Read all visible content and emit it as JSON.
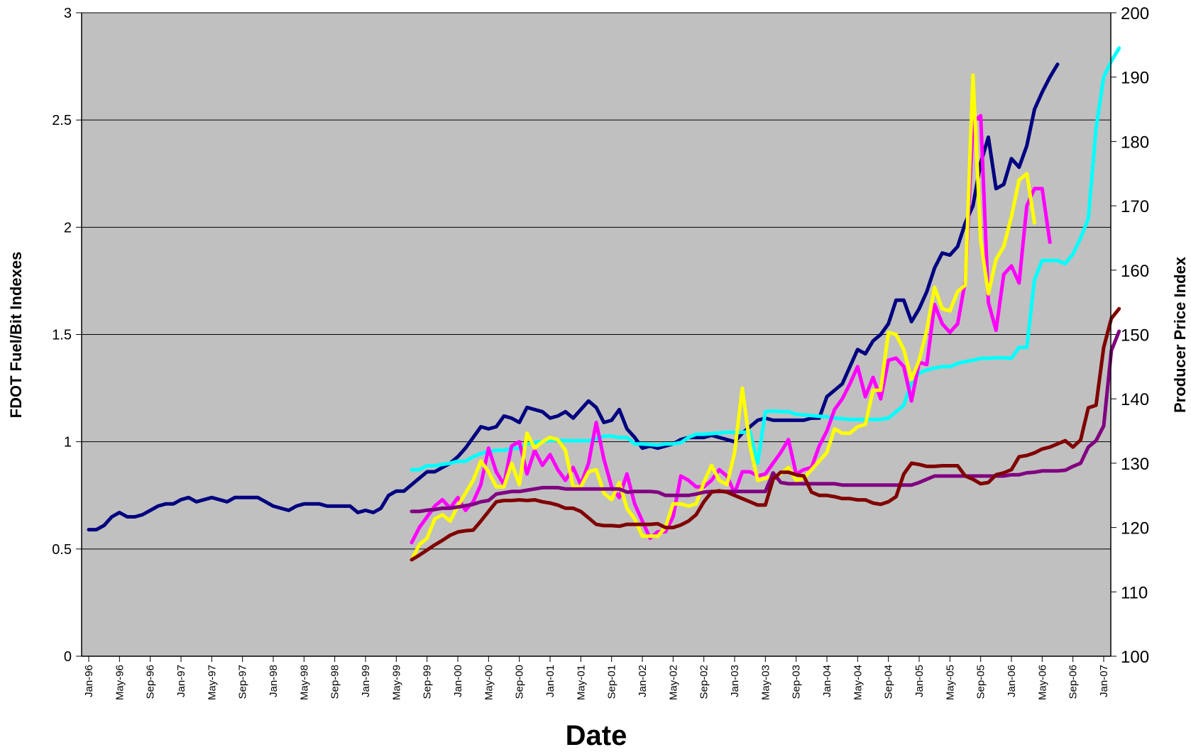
{
  "chart_data": {
    "type": "line",
    "title": "",
    "xlabel": "Date",
    "ylabel_left": "FDOT Fuel/Bit Indexes",
    "ylabel_right": "Producer Price Index",
    "ylim_left": [
      0,
      3
    ],
    "ylim_right": [
      100,
      200
    ],
    "yticks_left": [
      "0",
      "0.5",
      "1",
      "1.5",
      "2",
      "2.5",
      "3"
    ],
    "yticks_right": [
      "100",
      "110",
      "120",
      "130",
      "140",
      "150",
      "160",
      "170",
      "180",
      "190",
      "200"
    ],
    "xticks": [
      "Jan-96",
      "May-96",
      "Sep-96",
      "Jan-97",
      "May-97",
      "Sep-97",
      "Jan-98",
      "May-98",
      "Sep-98",
      "Jan-99",
      "May-99",
      "Sep-99",
      "Jan-00",
      "May-00",
      "Sep-00",
      "Jan-01",
      "May-01",
      "Sep-01",
      "Jan-02",
      "May-02",
      "Sep-02",
      "Jan-03",
      "May-03",
      "Sep-03",
      "Jan-04",
      "May-04",
      "Sep-04",
      "Jan-05",
      "May-05",
      "Sep-05",
      "Jan-06",
      "May-06",
      "Sep-06",
      "Jan-07"
    ],
    "x_start": "Jan-96",
    "x_end": "Jan-07",
    "grid": "horizontal",
    "background": "#c0c0c0",
    "series": [
      {
        "color": "#000080",
        "axis": "left",
        "start": "Jan-96",
        "values": [
          0.59,
          0.59,
          0.61,
          0.65,
          0.67,
          0.65,
          0.65,
          0.66,
          0.68,
          0.7,
          0.71,
          0.71,
          0.73,
          0.74,
          0.72,
          0.73,
          0.74,
          0.73,
          0.72,
          0.74,
          0.74,
          0.74,
          0.74,
          0.72,
          0.7,
          0.69,
          0.68,
          0.7,
          0.71,
          0.71,
          0.71,
          0.7,
          0.7,
          0.7,
          0.7,
          0.67,
          0.68,
          0.67,
          0.69,
          0.75,
          0.77,
          0.77,
          0.8,
          0.83,
          0.86,
          0.86,
          0.88,
          0.9,
          0.93,
          0.97,
          1.02,
          1.07,
          1.06,
          1.07,
          1.12,
          1.11,
          1.09,
          1.16,
          1.15,
          1.14,
          1.11,
          1.12,
          1.14,
          1.11,
          1.15,
          1.19,
          1.16,
          1.09,
          1.1,
          1.15,
          1.06,
          1.02,
          0.97,
          0.98,
          0.97,
          0.98,
          0.99,
          1.01,
          1.02,
          1.02,
          1.02,
          1.03,
          1.02,
          1.01,
          1.0,
          1.04,
          1.07,
          1.1,
          1.11,
          1.1,
          1.1,
          1.1,
          1.1,
          1.1,
          1.11,
          1.11,
          1.21,
          1.24,
          1.27,
          1.35,
          1.43,
          1.41,
          1.47,
          1.5,
          1.55,
          1.66,
          1.66,
          1.56,
          1.62,
          1.7,
          1.81,
          1.88,
          1.87,
          1.91,
          2.02,
          2.1,
          2.3,
          2.42,
          2.18,
          2.2,
          2.32,
          2.28,
          2.38,
          2.55,
          2.63,
          2.7,
          2.76
        ]
      },
      {
        "color": "#00ffff",
        "axis": "right",
        "start": "Jul-99",
        "values": [
          129.0,
          129.0,
          129.6,
          129.6,
          129.8,
          130.0,
          130.3,
          130.3,
          131.0,
          131.5,
          131.8,
          132.0,
          132.0,
          132.3,
          132.3,
          133.0,
          133.2,
          133.4,
          133.5,
          133.6,
          133.5,
          133.5,
          133.5,
          133.5,
          133.8,
          134.2,
          134.2,
          134.0,
          134.0,
          133.0,
          133.0,
          132.9,
          132.8,
          133.0,
          133.0,
          133.2,
          134.0,
          134.5,
          134.5,
          134.6,
          134.7,
          134.8,
          134.8,
          134.8,
          134.9,
          130.0,
          138.0,
          138.1,
          138.0,
          138.0,
          137.6,
          137.5,
          137.4,
          137.3,
          137.2,
          137.0,
          136.9,
          136.8,
          136.8,
          136.8,
          136.8,
          136.8,
          137.0,
          138.0,
          139.0,
          142.5,
          144.0,
          144.5,
          144.8,
          145.0,
          145.0,
          145.5,
          145.8,
          146.0,
          146.3,
          146.3,
          146.4,
          146.4,
          146.3,
          148.0,
          148.0,
          158.5,
          161.5,
          161.5,
          161.5,
          161.0,
          162.5,
          165.0,
          168.0,
          182.0,
          190.0,
          192.5,
          194.5
        ]
      },
      {
        "color": "#ff00ff",
        "axis": "left",
        "start": "Jul-99",
        "values": [
          0.53,
          0.6,
          0.65,
          0.7,
          0.73,
          0.69,
          0.74,
          0.68,
          0.72,
          0.8,
          0.97,
          0.86,
          0.8,
          0.98,
          1.0,
          0.85,
          0.96,
          0.89,
          0.94,
          0.87,
          0.82,
          0.88,
          0.8,
          0.9,
          1.09,
          0.92,
          0.79,
          0.74,
          0.85,
          0.71,
          0.63,
          0.55,
          0.58,
          0.58,
          0.65,
          0.84,
          0.82,
          0.79,
          0.79,
          0.82,
          0.87,
          0.84,
          0.76,
          0.86,
          0.86,
          0.84,
          0.85,
          0.9,
          0.95,
          1.01,
          0.85,
          0.87,
          0.88,
          0.98,
          1.05,
          1.15,
          1.2,
          1.27,
          1.35,
          1.21,
          1.3,
          1.2,
          1.38,
          1.39,
          1.35,
          1.19,
          1.37,
          1.36,
          1.64,
          1.55,
          1.51,
          1.55,
          1.75,
          2.49,
          2.52,
          1.65,
          1.52,
          1.78,
          1.82,
          1.74,
          2.1,
          2.18,
          2.18,
          1.93
        ]
      },
      {
        "color": "#ffff00",
        "axis": "left",
        "start": "Jul-99",
        "values": [
          0.45,
          0.52,
          0.55,
          0.64,
          0.66,
          0.63,
          0.7,
          0.76,
          0.82,
          0.91,
          0.86,
          0.79,
          0.79,
          0.9,
          0.8,
          1.04,
          0.97,
          1.0,
          1.02,
          1.01,
          0.96,
          0.79,
          0.79,
          0.86,
          0.87,
          0.76,
          0.73,
          0.81,
          0.69,
          0.64,
          0.56,
          0.56,
          0.56,
          0.6,
          0.71,
          0.71,
          0.7,
          0.71,
          0.81,
          0.89,
          0.82,
          0.8,
          0.95,
          1.25,
          0.98,
          0.82,
          0.83,
          0.84,
          0.85,
          0.88,
          0.82,
          0.83,
          0.87,
          0.91,
          0.95,
          1.06,
          1.04,
          1.04,
          1.07,
          1.08,
          1.24,
          1.24,
          1.51,
          1.5,
          1.43,
          1.29,
          1.38,
          1.52,
          1.72,
          1.62,
          1.61,
          1.7,
          1.73,
          2.71,
          1.94,
          1.69,
          1.85,
          1.91,
          2.05,
          2.22,
          2.25,
          2.02
        ]
      },
      {
        "color": "#800080",
        "axis": "right",
        "start": "Jul-99",
        "values": [
          122.5,
          122.5,
          122.7,
          122.8,
          123.0,
          123.0,
          123.2,
          123.4,
          123.6,
          124.0,
          124.2,
          125.2,
          125.4,
          125.6,
          125.6,
          125.8,
          126.0,
          126.2,
          126.2,
          126.2,
          126.0,
          126.0,
          126.0,
          126.0,
          126.0,
          126.0,
          126.0,
          126.0,
          125.5,
          125.6,
          125.6,
          125.6,
          125.5,
          125.0,
          125.0,
          125.0,
          125.0,
          125.2,
          125.5,
          125.6,
          125.6,
          125.6,
          125.6,
          125.6,
          125.6,
          125.6,
          125.6,
          128.5,
          127.0,
          126.8,
          126.8,
          126.8,
          126.8,
          126.8,
          126.8,
          126.8,
          126.6,
          126.6,
          126.6,
          126.6,
          126.6,
          126.6,
          126.6,
          126.6,
          126.6,
          126.6,
          127.0,
          127.5,
          128.0,
          128.0,
          128.0,
          128.0,
          128.0,
          128.0,
          128.0,
          128.0,
          128.0,
          128.0,
          128.2,
          128.2,
          128.5,
          128.6,
          128.8,
          128.8,
          128.8,
          128.9,
          129.5,
          130.0,
          132.5,
          133.5,
          135.8,
          147.5,
          150.5
        ]
      },
      {
        "color": "#800000",
        "axis": "right",
        "start": "Jul-99",
        "values": [
          115.0,
          115.7,
          116.5,
          117.3,
          118.0,
          118.8,
          119.3,
          119.5,
          119.6,
          121.0,
          122.5,
          124.0,
          124.2,
          124.2,
          124.3,
          124.2,
          124.3,
          124.0,
          123.8,
          123.5,
          123.0,
          123.0,
          122.5,
          121.5,
          120.5,
          120.3,
          120.3,
          120.2,
          120.5,
          120.5,
          120.5,
          120.5,
          120.6,
          120.0,
          120.0,
          120.4,
          121.0,
          122.0,
          124.0,
          125.5,
          125.7,
          125.5,
          125.0,
          124.5,
          124.0,
          123.5,
          123.5,
          127.5,
          128.6,
          128.6,
          128.2,
          128.0,
          125.5,
          125.0,
          125.0,
          124.8,
          124.5,
          124.5,
          124.3,
          124.3,
          123.8,
          123.6,
          124.0,
          124.8,
          128.3,
          130.0,
          129.8,
          129.5,
          129.5,
          129.6,
          129.6,
          129.6,
          128.0,
          127.5,
          126.8,
          127.0,
          128.2,
          128.5,
          129.0,
          131.0,
          131.2,
          131.6,
          132.2,
          132.5,
          133.0,
          133.5,
          132.5,
          133.6,
          138.6,
          139.0,
          148.0,
          152.5,
          154.0
        ]
      }
    ]
  }
}
